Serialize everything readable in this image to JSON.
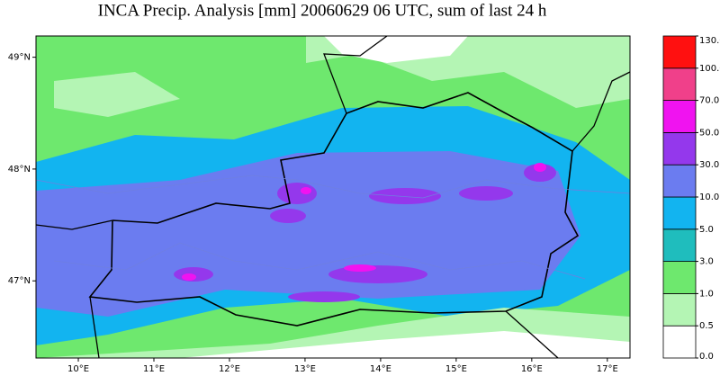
{
  "map": {
    "title": "INCA Precip. Analysis [mm] 20060629 06 UTC, sum of last 24 h",
    "xlim": [
      9.44,
      17.3
    ],
    "ylim": [
      46.31,
      49.19
    ],
    "lon_ticks": [
      {
        "value": 10,
        "label": "10°E"
      },
      {
        "value": 11,
        "label": "11°E"
      },
      {
        "value": 12,
        "label": "12°E"
      },
      {
        "value": 13,
        "label": "13°E"
      },
      {
        "value": 14,
        "label": "14°E"
      },
      {
        "value": 15,
        "label": "15°E"
      },
      {
        "value": 16,
        "label": "16°E"
      },
      {
        "value": 17,
        "label": "17°E"
      }
    ],
    "lat_ticks": [
      {
        "value": 47,
        "label": "47°N"
      },
      {
        "value": 48,
        "label": "48°N"
      },
      {
        "value": 49,
        "label": "49°N"
      }
    ],
    "colorbar": {
      "levels": [
        {
          "value": 0,
          "label": "0.0"
        },
        {
          "value": 0.5,
          "label": "0.5"
        },
        {
          "value": 1,
          "label": "1.0"
        },
        {
          "value": 3,
          "label": "3.0"
        },
        {
          "value": 5,
          "label": "5.0"
        },
        {
          "value": 10,
          "label": "10.0"
        },
        {
          "value": 30,
          "label": "30.0"
        },
        {
          "value": 50,
          "label": "50.0"
        },
        {
          "value": 70,
          "label": "70.0"
        },
        {
          "value": 100,
          "label": "100.0"
        },
        {
          "value": 130,
          "label": "130.0"
        }
      ],
      "colors": [
        "#ffffff",
        "#b4f5b4",
        "#6ee86e",
        "#1fbdbd",
        "#12b4f0",
        "#6b7cf0",
        "#9438ec",
        "#f013f0",
        "#f0408a",
        "#ff1010"
      ]
    }
  }
}
